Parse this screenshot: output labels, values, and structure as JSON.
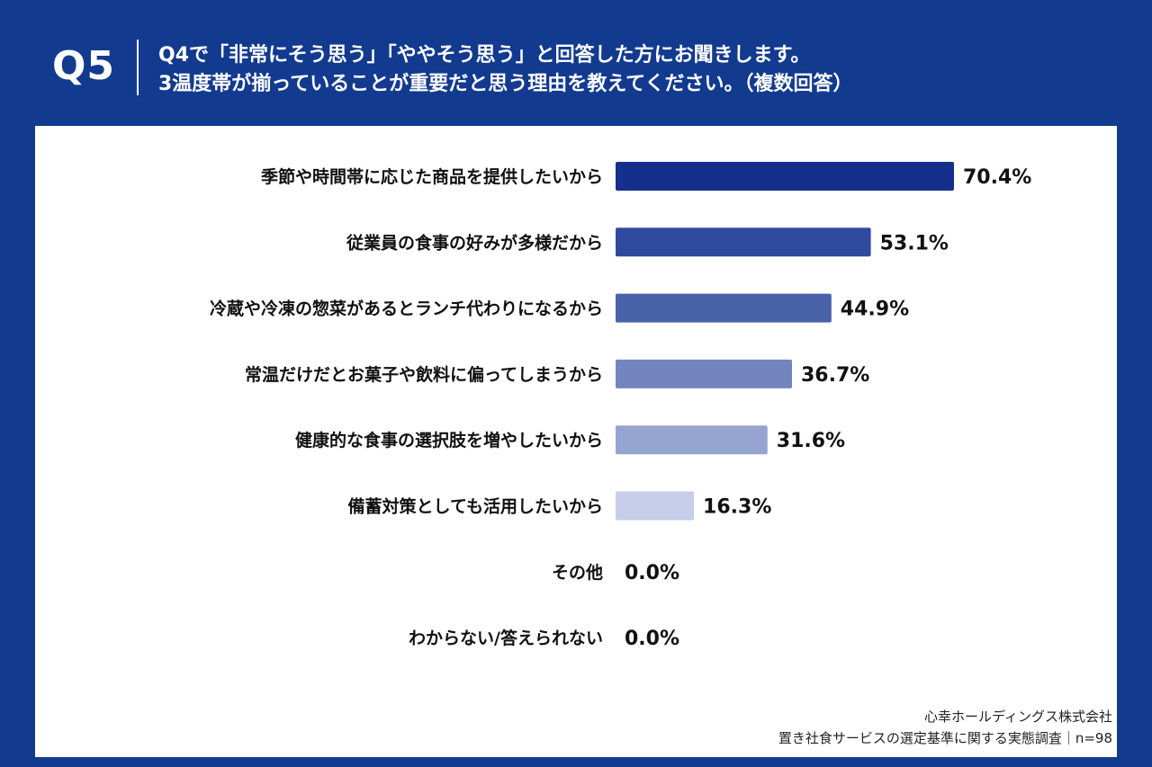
{
  "header": {
    "question_label": "Q5",
    "question_line1": "Q4で「非常にそう思う」「ややそう思う」と回答した方にお聞きします。",
    "question_line2": "3温度帯が揃っていることが重要だと思う理由を教えてください。（複数回答）"
  },
  "chart_data": {
    "type": "bar",
    "orientation": "horizontal",
    "categories": [
      "季節や時間帯に応じた商品を提供したいから",
      "従業員の食事の好みが多様だから",
      "冷蔵や冷凍の惣菜があるとランチ代わりになるから",
      "常温だけだとお菓子や飲料に偏ってしまうから",
      "健康的な食事の選択肢を増やしたいから",
      "備蓄対策としても活用したいから",
      "その他",
      "わからない/答えられない"
    ],
    "values": [
      70.4,
      53.1,
      44.9,
      36.7,
      31.6,
      16.3,
      0.0,
      0.0
    ],
    "value_labels": [
      "70.4%",
      "53.1%",
      "44.9%",
      "36.7%",
      "31.6%",
      "16.3%",
      "0.0%",
      "0.0%"
    ],
    "bar_colors": [
      "#142f8c",
      "#2f4a9c",
      "#4a62a9",
      "#7285bf",
      "#95a4d0",
      "#c5cde8",
      "#dde2f2",
      "#dde2f2"
    ],
    "xlim": [
      0,
      100
    ],
    "unit": "%"
  },
  "footer": {
    "company": "心幸ホールディングス株式会社",
    "survey": "置き社食サービスの選定基準に関する実態調査｜n=98"
  }
}
